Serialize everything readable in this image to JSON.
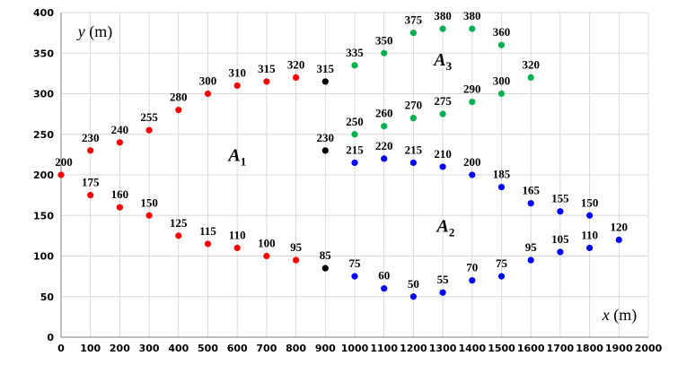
{
  "chart_data": {
    "type": "scatter",
    "xlim": [
      0,
      2000
    ],
    "ylim": [
      0,
      400
    ],
    "grid": true,
    "x_ticks": [
      0,
      100,
      200,
      300,
      400,
      500,
      600,
      700,
      800,
      900,
      1000,
      1100,
      1200,
      1300,
      1400,
      1500,
      1600,
      1700,
      1800,
      1900,
      2000
    ],
    "y_ticks": [
      0,
      50,
      100,
      150,
      200,
      250,
      300,
      350,
      400
    ],
    "x_title": {
      "var": "x",
      "unit": " (m)"
    },
    "y_title": {
      "var": "y",
      "unit": " (m)"
    },
    "regions": [
      {
        "main": "A",
        "sub": "1",
        "x": 570,
        "y": 217
      },
      {
        "main": "A",
        "sub": "2",
        "x": 1280,
        "y": 130
      },
      {
        "main": "A",
        "sub": "3",
        "x": 1270,
        "y": 335
      }
    ],
    "series": [
      {
        "color": "#ff0000",
        "points": [
          [
            0,
            200
          ],
          [
            100,
            230
          ],
          [
            200,
            240
          ],
          [
            300,
            255
          ],
          [
            400,
            280
          ],
          [
            500,
            300
          ],
          [
            600,
            310
          ],
          [
            700,
            315
          ],
          [
            800,
            320
          ],
          [
            100,
            175
          ],
          [
            200,
            160
          ],
          [
            300,
            150
          ],
          [
            400,
            125
          ],
          [
            500,
            115
          ],
          [
            600,
            110
          ],
          [
            700,
            100
          ],
          [
            800,
            95
          ]
        ]
      },
      {
        "color": "#000000",
        "points": [
          [
            900,
            315
          ],
          [
            900,
            230
          ],
          [
            900,
            85
          ]
        ]
      },
      {
        "color": "#0000ff",
        "points": [
          [
            1000,
            215
          ],
          [
            1100,
            220
          ],
          [
            1200,
            215
          ],
          [
            1300,
            210
          ],
          [
            1400,
            200
          ],
          [
            1500,
            185
          ],
          [
            1600,
            165
          ],
          [
            1700,
            155
          ],
          [
            1800,
            150
          ],
          [
            1900,
            120
          ],
          [
            1000,
            75
          ],
          [
            1100,
            60
          ],
          [
            1200,
            50
          ],
          [
            1300,
            55
          ],
          [
            1400,
            70
          ],
          [
            1500,
            75
          ],
          [
            1600,
            95
          ],
          [
            1700,
            105
          ],
          [
            1800,
            110
          ]
        ]
      },
      {
        "color": "#00b050",
        "points": [
          [
            1000,
            335
          ],
          [
            1100,
            350
          ],
          [
            1200,
            375
          ],
          [
            1300,
            380
          ],
          [
            1400,
            380
          ],
          [
            1500,
            360
          ],
          [
            1600,
            320
          ],
          [
            1000,
            250
          ],
          [
            1100,
            260
          ],
          [
            1200,
            270
          ],
          [
            1300,
            275
          ],
          [
            1400,
            290
          ],
          [
            1500,
            300
          ]
        ]
      }
    ]
  }
}
